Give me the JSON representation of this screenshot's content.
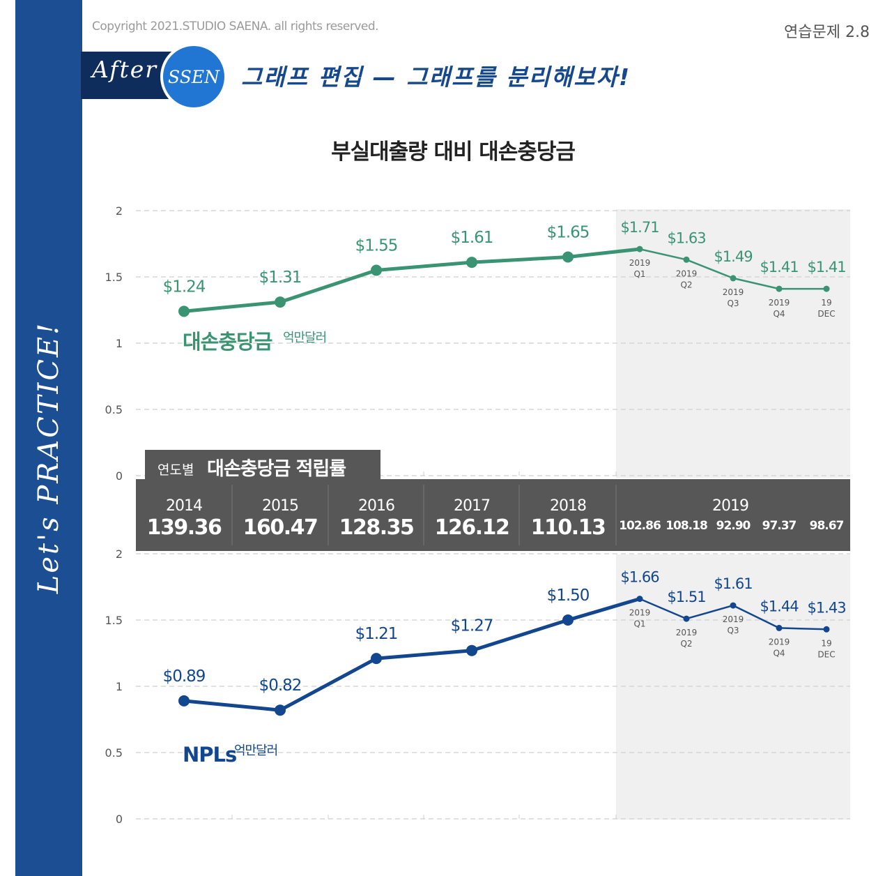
{
  "header": {
    "copyright": "Copyright 2021.STUDIO SAENA. all rights reserved.",
    "exercise": "연습문제 2.8",
    "after_label": "After",
    "ssen_label": "SSEN",
    "headline": "그래프 편집 — 그래프를 분리해보자!"
  },
  "sidebar": {
    "text": "Let's PRACTICE!"
  },
  "colors": {
    "sidebar": "#1b4e93",
    "green": "#3a9474",
    "navy": "#12468f",
    "table_bg": "#575757",
    "shade": "#f0f0f0"
  },
  "chart_data": {
    "type": "line",
    "title": "부실대출량 대비 대손충당금",
    "categories": [
      "2014",
      "2015",
      "2016",
      "2017",
      "2018",
      "2019 Q1",
      "2019 Q2",
      "2019 Q3",
      "2019 Q4",
      "19 DEC"
    ],
    "point_labels": [
      {
        "line1": "",
        "line2": ""
      },
      {
        "line1": "",
        "line2": ""
      },
      {
        "line1": "",
        "line2": ""
      },
      {
        "line1": "",
        "line2": ""
      },
      {
        "line1": "",
        "line2": ""
      },
      {
        "line1": "2019",
        "line2": "Q1"
      },
      {
        "line1": "2019",
        "line2": "Q2"
      },
      {
        "line1": "2019",
        "line2": "Q3"
      },
      {
        "line1": "2019",
        "line2": "Q4"
      },
      {
        "line1": "19",
        "line2": "DEC"
      }
    ],
    "shaded_region_label": "2019",
    "y_ticks": [
      "2",
      "1.5",
      "1",
      "0.5",
      "0"
    ],
    "ylim": [
      0,
      2
    ],
    "series": [
      {
        "name": "대손충당금",
        "unit": "억만달러",
        "color": "#3a9474",
        "values": [
          1.24,
          1.31,
          1.55,
          1.61,
          1.65,
          1.71,
          1.63,
          1.49,
          1.41,
          1.41
        ],
        "labels": [
          "$1.24",
          "$1.31",
          "$1.55",
          "$1.61",
          "$1.65",
          "$1.71",
          "$1.63",
          "$1.49",
          "$1.41",
          "$1.41"
        ]
      },
      {
        "name": "NPLs",
        "unit": "억만달러",
        "color": "#12468f",
        "values": [
          0.89,
          0.82,
          1.21,
          1.27,
          1.5,
          1.66,
          1.51,
          1.61,
          1.44,
          1.43
        ],
        "labels": [
          "$0.89",
          "$0.82",
          "$1.21",
          "$1.27",
          "$1.50",
          "$1.66",
          "$1.51",
          "$1.61",
          "$1.44",
          "$1.43"
        ]
      }
    ],
    "table": {
      "tab_prefix": "연도별",
      "tab_title": "대손충당금 적립률",
      "years": [
        "2014",
        "2015",
        "2016",
        "2017",
        "2018"
      ],
      "values": [
        "139.36",
        "160.47",
        "128.35",
        "126.12",
        "110.13"
      ],
      "year_2019": "2019",
      "values_2019": [
        "102.86",
        "108.18",
        "92.90",
        "97.37",
        "98.67"
      ]
    }
  }
}
